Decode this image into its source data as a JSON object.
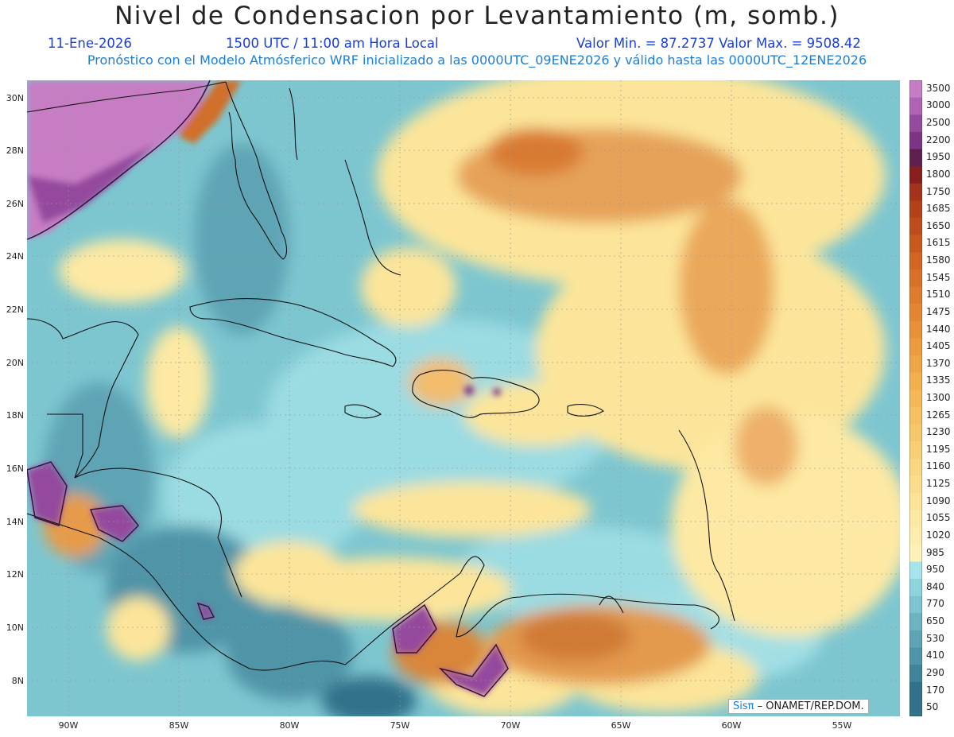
{
  "title": "Nivel de Condensacion por Levantamiento (m, somb.)",
  "date": "11-Ene-2026",
  "time": "1500 UTC / 11:00 am Hora Local",
  "minmax": "Valor Min. = 87.2737  Valor Max. = 9508.42",
  "forecast_line": "Pronóstico con el Modelo Atmósferico WRF inicializado a las 0000UTC_09ENE2026 y válido hasta las  0000UTC_12ENE2026",
  "lat_labels": [
    "30N",
    "28N",
    "26N",
    "24N",
    "22N",
    "20N",
    "18N",
    "16N",
    "14N",
    "12N",
    "10N",
    "8N"
  ],
  "lon_labels": [
    "90W",
    "85W",
    "80W",
    "75W",
    "70W",
    "65W",
    "60W",
    "55W"
  ],
  "legend": {
    "levels": [
      "3500",
      "3000",
      "2500",
      "2200",
      "1950",
      "1800",
      "1750",
      "1685",
      "1650",
      "1615",
      "1580",
      "1545",
      "1510",
      "1475",
      "1440",
      "1405",
      "1370",
      "1335",
      "1300",
      "1265",
      "1230",
      "1195",
      "1160",
      "1125",
      "1090",
      "1055",
      "1020",
      "985",
      "950",
      "840",
      "770",
      "650",
      "530",
      "410",
      "290",
      "170",
      "50"
    ],
    "colors": [
      "#c77dc4",
      "#b062b4",
      "#954a9e",
      "#7c3583",
      "#60204f",
      "#8a1e1e",
      "#a3331b",
      "#b3421b",
      "#bf4d1c",
      "#c95a1f",
      "#d26522",
      "#d97027",
      "#df7b2c",
      "#e48631",
      "#e89138",
      "#ec9b3e",
      "#ef a545",
      "#f2af4e",
      "#f4b857",
      "#f6c061",
      "#f7c86b",
      "#f9cf76",
      "#fad681",
      "#fbdd8c",
      "#fce397",
      "#fde9a3",
      "#fdeeae",
      "#fef2b9",
      "#a6e3ea",
      "#8fd3dd",
      "#7ec4d0",
      "#6db4c3",
      "#5ea4b5",
      "#4f94a7",
      "#418399",
      "#33728b"
    ]
  },
  "credit": {
    "logo": "Sisπ",
    "text": "– ONAMET/REP.DOM."
  }
}
